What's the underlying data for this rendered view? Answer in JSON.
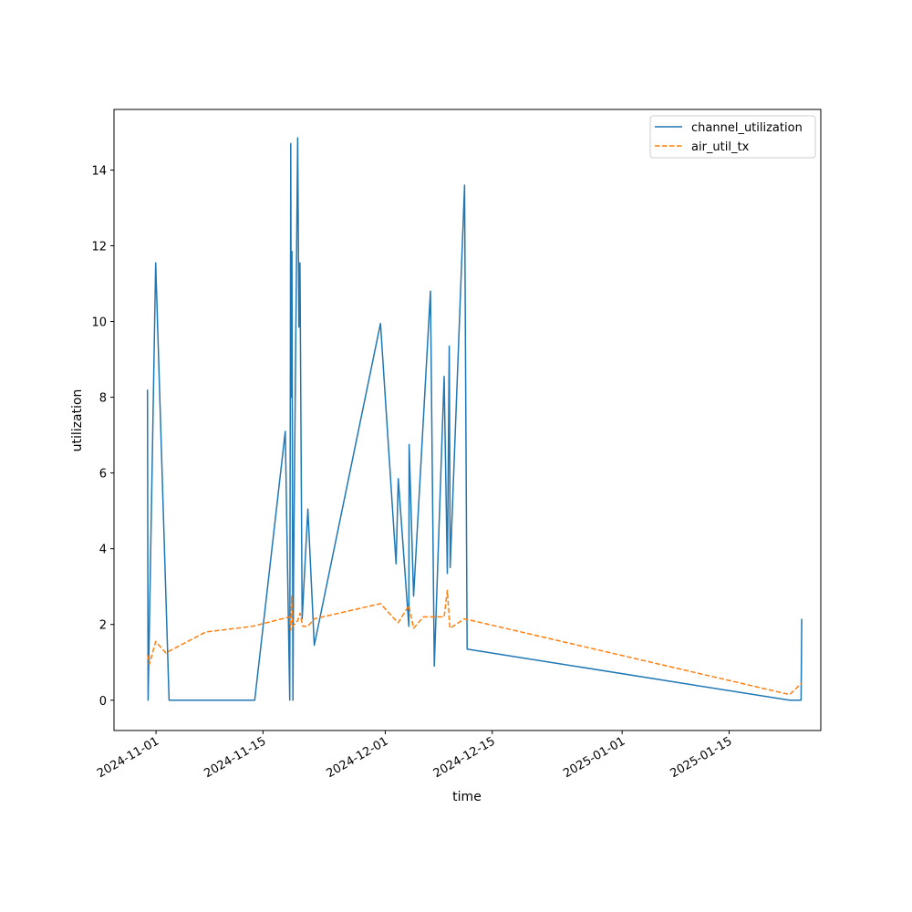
{
  "chart_data": {
    "type": "line",
    "title": "",
    "xlabel": "time",
    "ylabel": "utilization",
    "xlim": [
      "2024-10-26T12:00",
      "2025-01-27"
    ],
    "ylim": [
      -0.8,
      15.6
    ],
    "grid": false,
    "legend": "top-right",
    "x_ticks": [
      "2024-11-01",
      "2024-11-15",
      "2024-12-01",
      "2024-12-15",
      "2025-01-01",
      "2025-01-15"
    ],
    "y_ticks": [
      0,
      2,
      4,
      6,
      8,
      10,
      12,
      14
    ],
    "series": [
      {
        "name": "channel_utilization",
        "color": "#1f77b4",
        "style": "solid",
        "points": [
          [
            "2024-10-30T21:00",
            8.2
          ],
          [
            "2024-10-30T23:00",
            0.0
          ],
          [
            "2024-10-31T23:00",
            11.55
          ],
          [
            "2024-11-02T17:00",
            0.0
          ],
          [
            "2024-11-13T22:00",
            0.0
          ],
          [
            "2024-11-17T22:00",
            7.1
          ],
          [
            "2024-11-18T12:00",
            0.0
          ],
          [
            "2024-11-18T15:00",
            14.7
          ],
          [
            "2024-11-18T17:00",
            8.0
          ],
          [
            "2024-11-18T19:00",
            11.85
          ],
          [
            "2024-11-18T22:00",
            0.0
          ],
          [
            "2024-11-19T00:00",
            3.4
          ],
          [
            "2024-11-19T13:00",
            14.85
          ],
          [
            "2024-11-19T17:00",
            9.85
          ],
          [
            "2024-11-19T20:00",
            11.55
          ],
          [
            "2024-11-20T03:00",
            2.15
          ],
          [
            "2024-11-20T21:00",
            5.05
          ],
          [
            "2024-11-21T17:00",
            1.45
          ],
          [
            "2024-11-30T09:00",
            9.95
          ],
          [
            "2024-12-02T10:00",
            3.6
          ],
          [
            "2024-12-02T17:00",
            5.85
          ],
          [
            "2024-12-04T02:00",
            1.95
          ],
          [
            "2024-12-04T03:00",
            6.75
          ],
          [
            "2024-12-04T17:00",
            2.75
          ],
          [
            "2024-12-06T22:00",
            10.8
          ],
          [
            "2024-12-07T10:00",
            0.9
          ],
          [
            "2024-12-08T17:00",
            8.55
          ],
          [
            "2024-12-09T03:00",
            3.35
          ],
          [
            "2024-12-09T09:00",
            9.35
          ],
          [
            "2024-12-09T12:00",
            3.5
          ],
          [
            "2024-12-11T09:00",
            13.6
          ],
          [
            "2024-12-11T17:00",
            1.35
          ],
          [
            "2025-01-22T22:00",
            0.0
          ],
          [
            "2025-01-24T10:00",
            0.0
          ],
          [
            "2025-01-24T12:00",
            2.15
          ]
        ]
      },
      {
        "name": "air_util_tx",
        "color": "#ff7f0e",
        "style": "dashed",
        "points": [
          [
            "2024-10-30T21:00",
            1.2
          ],
          [
            "2024-10-31T03:00",
            0.95
          ],
          [
            "2024-10-31T23:00",
            1.55
          ],
          [
            "2024-11-02T07:00",
            1.25
          ],
          [
            "2024-11-07T12:00",
            1.8
          ],
          [
            "2024-11-13T14:00",
            1.95
          ],
          [
            "2024-11-18T12:00",
            2.2
          ],
          [
            "2024-11-18T15:00",
            1.85
          ],
          [
            "2024-11-18T18:00",
            2.75
          ],
          [
            "2024-11-18T21:00",
            1.95
          ],
          [
            "2024-11-19T13:00",
            2.1
          ],
          [
            "2024-11-19T20:00",
            2.3
          ],
          [
            "2024-11-20T05:00",
            1.95
          ],
          [
            "2024-11-20T21:00",
            1.95
          ],
          [
            "2024-11-21T17:00",
            2.15
          ],
          [
            "2024-11-30T09:00",
            2.55
          ],
          [
            "2024-12-02T10:00",
            2.1
          ],
          [
            "2024-12-02T17:00",
            2.05
          ],
          [
            "2024-12-04T02:00",
            2.5
          ],
          [
            "2024-12-04T17:00",
            1.9
          ],
          [
            "2024-12-06T00:00",
            2.2
          ],
          [
            "2024-12-08T17:00",
            2.2
          ],
          [
            "2024-12-09T03:00",
            2.9
          ],
          [
            "2024-12-09T11:00",
            1.9
          ],
          [
            "2024-12-11T09:00",
            2.15
          ],
          [
            "2025-01-22T22:00",
            0.15
          ],
          [
            "2025-01-24T12:00",
            0.45
          ]
        ]
      }
    ]
  }
}
